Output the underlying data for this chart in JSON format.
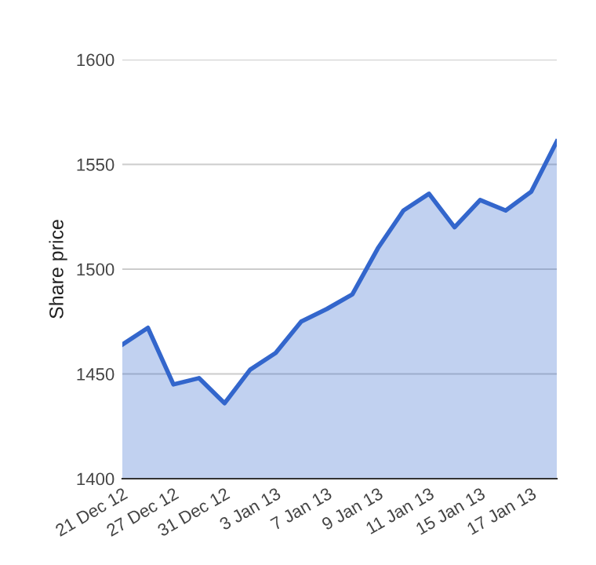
{
  "chart_data": {
    "type": "area",
    "ylabel": "Share price",
    "categories": [
      "21 Dec 12",
      null,
      "27 Dec 12",
      null,
      "31 Dec 12",
      null,
      "3 Jan 13",
      null,
      "7 Jan 13",
      null,
      "9 Jan 13",
      null,
      "11 Jan 13",
      null,
      "15 Jan 13",
      null,
      "17 Jan 13",
      null
    ],
    "series": [
      {
        "color": "#3366cc",
        "values": [
          1464,
          1472,
          1445,
          1448,
          1436,
          1452,
          1460,
          1475,
          1481,
          1488,
          1510,
          1528,
          1536,
          1520,
          1533,
          1528,
          1537,
          1561
        ]
      }
    ],
    "ylim": [
      1400,
      1600
    ],
    "yticks": [
      1400,
      1450,
      1500,
      1550,
      1600
    ],
    "grid": "y"
  }
}
